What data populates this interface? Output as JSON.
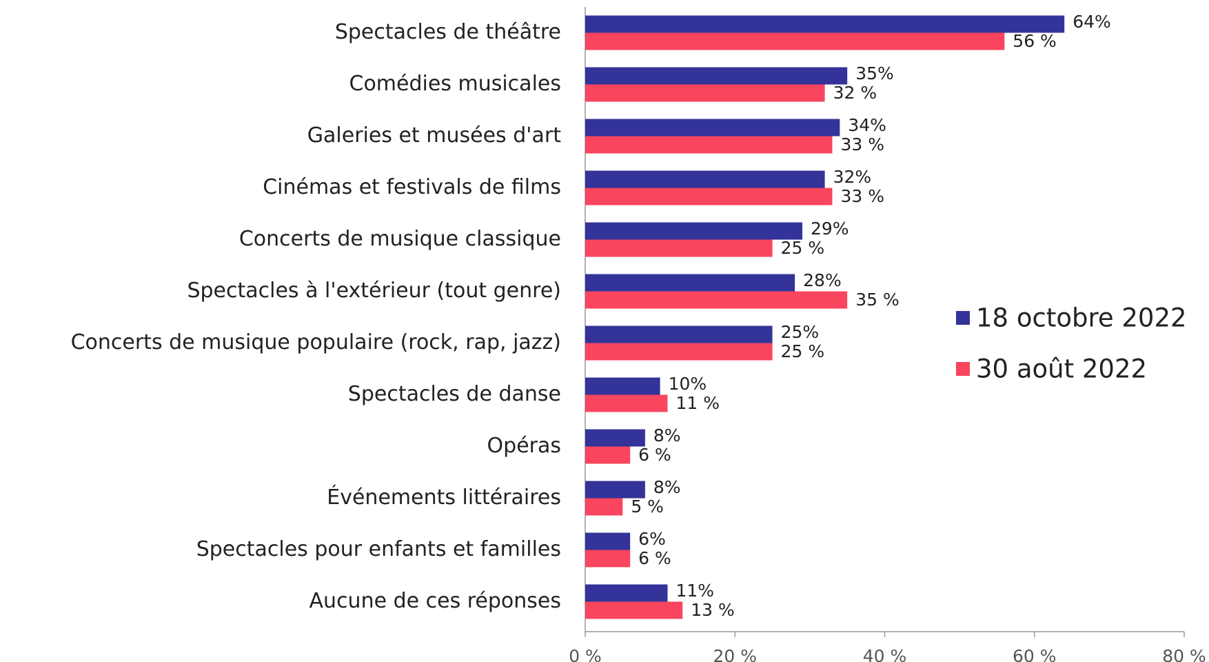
{
  "chart_data": {
    "type": "hbar",
    "categories": [
      "Spectacles de théâtre",
      "Comédies musicales",
      "Galeries et musées d'art",
      "Cinémas et festivals de films",
      "Concerts de musique classique",
      "Spectacles à l'extérieur (tout genre)",
      "Concerts de musique populaire (rock, rap, jazz)",
      "Spectacles de danse",
      "Opéras",
      "Événements littéraires",
      "Spectacles pour enfants et familles",
      "Aucune de ces réponses"
    ],
    "series": [
      {
        "name": "18 octobre 2022",
        "color": "#333399",
        "values": [
          64,
          35,
          34,
          32,
          29,
          28,
          25,
          10,
          8,
          8,
          6,
          11
        ],
        "value_labels": [
          "64%",
          "35%",
          "34%",
          "32%",
          "29%",
          "28%",
          "25%",
          "10%",
          "8%",
          "8%",
          "6%",
          "11%"
        ]
      },
      {
        "name": "30 août 2022",
        "color": "#f9455e",
        "values": [
          56,
          32,
          33,
          33,
          25,
          35,
          25,
          11,
          6,
          5,
          6,
          13
        ],
        "value_labels": [
          "56 %",
          "32 %",
          "33 %",
          "33 %",
          "25 %",
          "35 %",
          "25 %",
          "11 %",
          "6 %",
          "5 %",
          "6 %",
          "13 %"
        ]
      }
    ],
    "xlim": [
      0,
      80
    ],
    "xticks": [
      {
        "value": 0,
        "label": "0 %"
      },
      {
        "value": 20,
        "label": "20 %"
      },
      {
        "value": 40,
        "label": "40 %"
      },
      {
        "value": 60,
        "label": "60 %"
      },
      {
        "value": 80,
        "label": "80 %"
      }
    ],
    "legend": "right"
  }
}
